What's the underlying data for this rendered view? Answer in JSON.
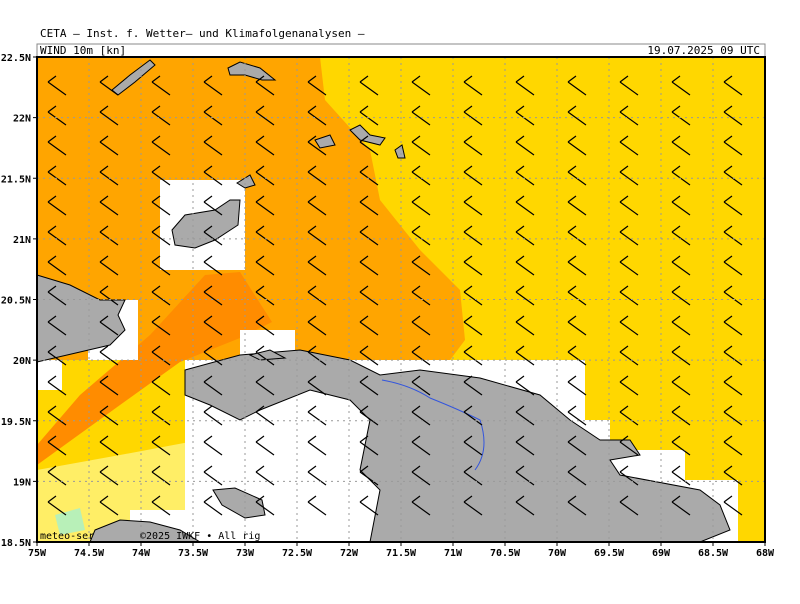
{
  "header": {
    "title": "CETA — Inst. f. Wetter— und Klimafolgenanalysen —",
    "field": "WIND 10m [kn]",
    "valid": "19.07.2025 09 UTC"
  },
  "map": {
    "xlim": [
      -75,
      -68
    ],
    "ylim": [
      18.5,
      22.5
    ],
    "xticks": [
      {
        "value": -75,
        "label": "75W"
      },
      {
        "value": -74.5,
        "label": "74.5W"
      },
      {
        "value": -74,
        "label": "74W"
      },
      {
        "value": -73.5,
        "label": "73.5W"
      },
      {
        "value": -73,
        "label": "73W"
      },
      {
        "value": -72.5,
        "label": "72.5W"
      },
      {
        "value": -72,
        "label": "72W"
      },
      {
        "value": -71.5,
        "label": "71.5W"
      },
      {
        "value": -71,
        "label": "71W"
      },
      {
        "value": -70.5,
        "label": "70.5W"
      },
      {
        "value": -70,
        "label": "70W"
      },
      {
        "value": -69.5,
        "label": "69.5W"
      },
      {
        "value": -69,
        "label": "69W"
      },
      {
        "value": -68.5,
        "label": "68.5W"
      },
      {
        "value": -68,
        "label": "68W"
      }
    ],
    "yticks": [
      {
        "value": 18.5,
        "label": "18.5N"
      },
      {
        "value": 19,
        "label": "19N"
      },
      {
        "value": 19.5,
        "label": "19.5N"
      },
      {
        "value": 20,
        "label": "20N"
      },
      {
        "value": 20.5,
        "label": "20.5N"
      },
      {
        "value": 21,
        "label": "21N"
      },
      {
        "value": 21.5,
        "label": "21.5N"
      },
      {
        "value": 22,
        "label": "22N"
      },
      {
        "value": 22.5,
        "label": "22.5N"
      }
    ]
  },
  "footer": {
    "source": "meteo-ser",
    "copyright": "©2025 IWKF • All rig"
  }
}
